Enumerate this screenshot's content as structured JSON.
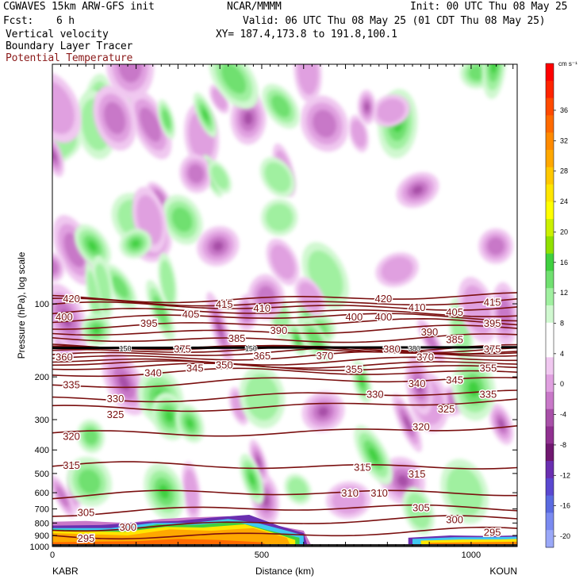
{
  "header": {
    "model_line": "CGWAVES 15km ARW-GFS init",
    "source": "NCAR/MMMM",
    "init": "Init: 00 UTC Thu 08 May 25",
    "fcst_label": "Fcst:",
    "fcst_value": "6 h",
    "valid": "Valid: 06 UTC Thu 08 May 25 (01 CDT Thu 08 May 25)",
    "field1": "Vertical velocity",
    "xy": "XY= 187.4,173.8 to 191.8,100.1",
    "field2": "Boundary Layer Tracer",
    "field3": "Potential Temperature",
    "field3_color": "#8b1a1a"
  },
  "chart_data": {
    "type": "heatmap",
    "description_fields": [
      "Vertical velocity (shaded)",
      "Boundary Layer Tracer (shaded)",
      "Potential Temperature (contours)"
    ],
    "xlabel": "Distance (km)",
    "ylabel": "Pressure (hPa), log scale",
    "x_ticks": [
      0,
      500,
      1000
    ],
    "xlim": [
      0,
      1110
    ],
    "y_ticks": [
      100,
      200,
      300,
      400,
      500,
      600,
      700,
      800,
      900,
      1000
    ],
    "y_scale": "log",
    "x_endpoints": {
      "left": "KABR",
      "right": "KOUN"
    },
    "colorbar": {
      "unit": "cm s⁻¹",
      "labels": [
        36,
        32,
        28,
        24,
        20,
        16,
        12,
        8,
        4,
        0,
        -4,
        -8,
        -12,
        -16,
        -20
      ],
      "colors": [
        "#ff0000",
        "#ff2400",
        "#ff4a00",
        "#ff6a00",
        "#ff8a00",
        "#ffa800",
        "#ffc800",
        "#ffe600",
        "#ffff00",
        "#cbf000",
        "#90e000",
        "#40d040",
        "#70e070",
        "#a0f0a0",
        "#d0f8d0",
        "#ffffff",
        "#ffffff",
        "#f0c8f0",
        "#e0a0e0",
        "#c878c8",
        "#a850a8",
        "#903090",
        "#701870",
        "#6a2fb0",
        "#5a48d0",
        "#5a6ae0",
        "#7a8af0",
        "#9aa8f8"
      ]
    },
    "theta_contours": [
      {
        "value": 295,
        "pressure_left": 900,
        "pressure_right": 870
      },
      {
        "value": 300,
        "pressure_left": 830,
        "pressure_right": 770
      },
      {
        "value": 305,
        "pressure_left": 720,
        "pressure_right": 690
      },
      {
        "value": 310,
        "pressure_left": 620,
        "pressure_right": 590
      },
      {
        "value": 315,
        "pressure_left": 470,
        "pressure_right": 460
      },
      {
        "value": 320,
        "pressure_left": 350,
        "pressure_right": 320
      },
      {
        "value": 325,
        "pressure_left": 270,
        "pressure_right": 255
      },
      {
        "value": 330,
        "pressure_left": 245,
        "pressure_right": 235
      },
      {
        "value": 335,
        "pressure_left": 215,
        "pressure_right": 205
      },
      {
        "value": 340,
        "pressure_left": 195,
        "pressure_right": 190
      },
      {
        "value": 345,
        "pressure_left": 185,
        "pressure_right": 180
      },
      {
        "value": 350,
        "pressure_left": 178,
        "pressure_right": 175
      },
      {
        "value": 355,
        "pressure_left": 172,
        "pressure_right": 170
      },
      {
        "value": 360,
        "pressure_left": 165,
        "pressure_right": 163
      },
      {
        "value": 365,
        "pressure_left": 160,
        "pressure_right": 158
      },
      {
        "value": 370,
        "pressure_left": 157,
        "pressure_right": 156
      },
      {
        "value": 375,
        "pressure_left": 154,
        "pressure_right": 153
      },
      {
        "value": 380,
        "pressure_left": 152,
        "pressure_right": 151
      },
      {
        "value": 385,
        "pressure_left": 140,
        "pressure_right": 138
      },
      {
        "value": 390,
        "pressure_left": 130,
        "pressure_right": 128
      },
      {
        "value": 395,
        "pressure_left": 122,
        "pressure_right": 120
      },
      {
        "value": 400,
        "pressure_left": 115,
        "pressure_right": 113
      },
      {
        "value": 405,
        "pressure_left": 109,
        "pressure_right": 108
      },
      {
        "value": 410,
        "pressure_left": 103,
        "pressure_right": 102
      },
      {
        "value": 415,
        "pressure_left": 99,
        "pressure_right": 98
      },
      {
        "value": 420,
        "pressure_left": 95,
        "pressure_right": 94
      }
    ],
    "contour_labels": [
      {
        "text": "420",
        "x": 25,
        "p": 95
      },
      {
        "text": "400",
        "x": -5,
        "p": 113
      },
      {
        "text": "395",
        "x": 210,
        "p": 120
      },
      {
        "text": "405",
        "x": 310,
        "p": 110
      },
      {
        "text": "415",
        "x": 390,
        "p": 100
      },
      {
        "text": "410",
        "x": 480,
        "p": 104
      },
      {
        "text": "385",
        "x": 420,
        "p": 138
      },
      {
        "text": "390",
        "x": 520,
        "p": 128
      },
      {
        "text": "375",
        "x": 290,
        "p": 153
      },
      {
        "text": "380",
        "x": 790,
        "p": 153
      },
      {
        "text": "360",
        "x": -5,
        "p": 165
      },
      {
        "text": "335",
        "x": 25,
        "p": 215
      },
      {
        "text": "340",
        "x": 220,
        "p": 192
      },
      {
        "text": "345",
        "x": 320,
        "p": 183
      },
      {
        "text": "350",
        "x": 390,
        "p": 178
      },
      {
        "text": "365",
        "x": 480,
        "p": 163
      },
      {
        "text": "370",
        "x": 630,
        "p": 163
      },
      {
        "text": "355",
        "x": 700,
        "p": 185
      },
      {
        "text": "330",
        "x": 130,
        "p": 245
      },
      {
        "text": "325",
        "x": 130,
        "p": 285
      },
      {
        "text": "320",
        "x": 25,
        "p": 350
      },
      {
        "text": "315",
        "x": 25,
        "p": 460
      },
      {
        "text": "305",
        "x": 60,
        "p": 720
      },
      {
        "text": "300",
        "x": 160,
        "p": 830
      },
      {
        "text": "295",
        "x": 60,
        "p": 920
      },
      {
        "text": "400",
        "x": 700,
        "p": 113
      },
      {
        "text": "400",
        "x": 770,
        "p": 113
      },
      {
        "text": "420",
        "x": 770,
        "p": 95
      },
      {
        "text": "410",
        "x": 850,
        "p": 103
      },
      {
        "text": "405",
        "x": 940,
        "p": 108
      },
      {
        "text": "415",
        "x": 1030,
        "p": 98
      },
      {
        "text": "395",
        "x": 1030,
        "p": 120
      },
      {
        "text": "390",
        "x": 880,
        "p": 130
      },
      {
        "text": "385",
        "x": 940,
        "p": 140
      },
      {
        "text": "375",
        "x": 1030,
        "p": 153
      },
      {
        "text": "370",
        "x": 870,
        "p": 165
      },
      {
        "text": "355",
        "x": 1020,
        "p": 183
      },
      {
        "text": "345",
        "x": 940,
        "p": 205
      },
      {
        "text": "340",
        "x": 850,
        "p": 212
      },
      {
        "text": "335",
        "x": 1020,
        "p": 235
      },
      {
        "text": "330",
        "x": 750,
        "p": 235
      },
      {
        "text": "325",
        "x": 920,
        "p": 270
      },
      {
        "text": "320",
        "x": 860,
        "p": 320
      },
      {
        "text": "315",
        "x": 720,
        "p": 470
      },
      {
        "text": "315",
        "x": 850,
        "p": 500
      },
      {
        "text": "310",
        "x": 690,
        "p": 600
      },
      {
        "text": "310",
        "x": 760,
        "p": 600
      },
      {
        "text": "305",
        "x": 860,
        "p": 690
      },
      {
        "text": "300",
        "x": 940,
        "p": 770
      },
      {
        "text": "295",
        "x": 1030,
        "p": 870
      }
    ],
    "tropopause_marker_labels": [
      "150",
      "150",
      "380"
    ]
  }
}
